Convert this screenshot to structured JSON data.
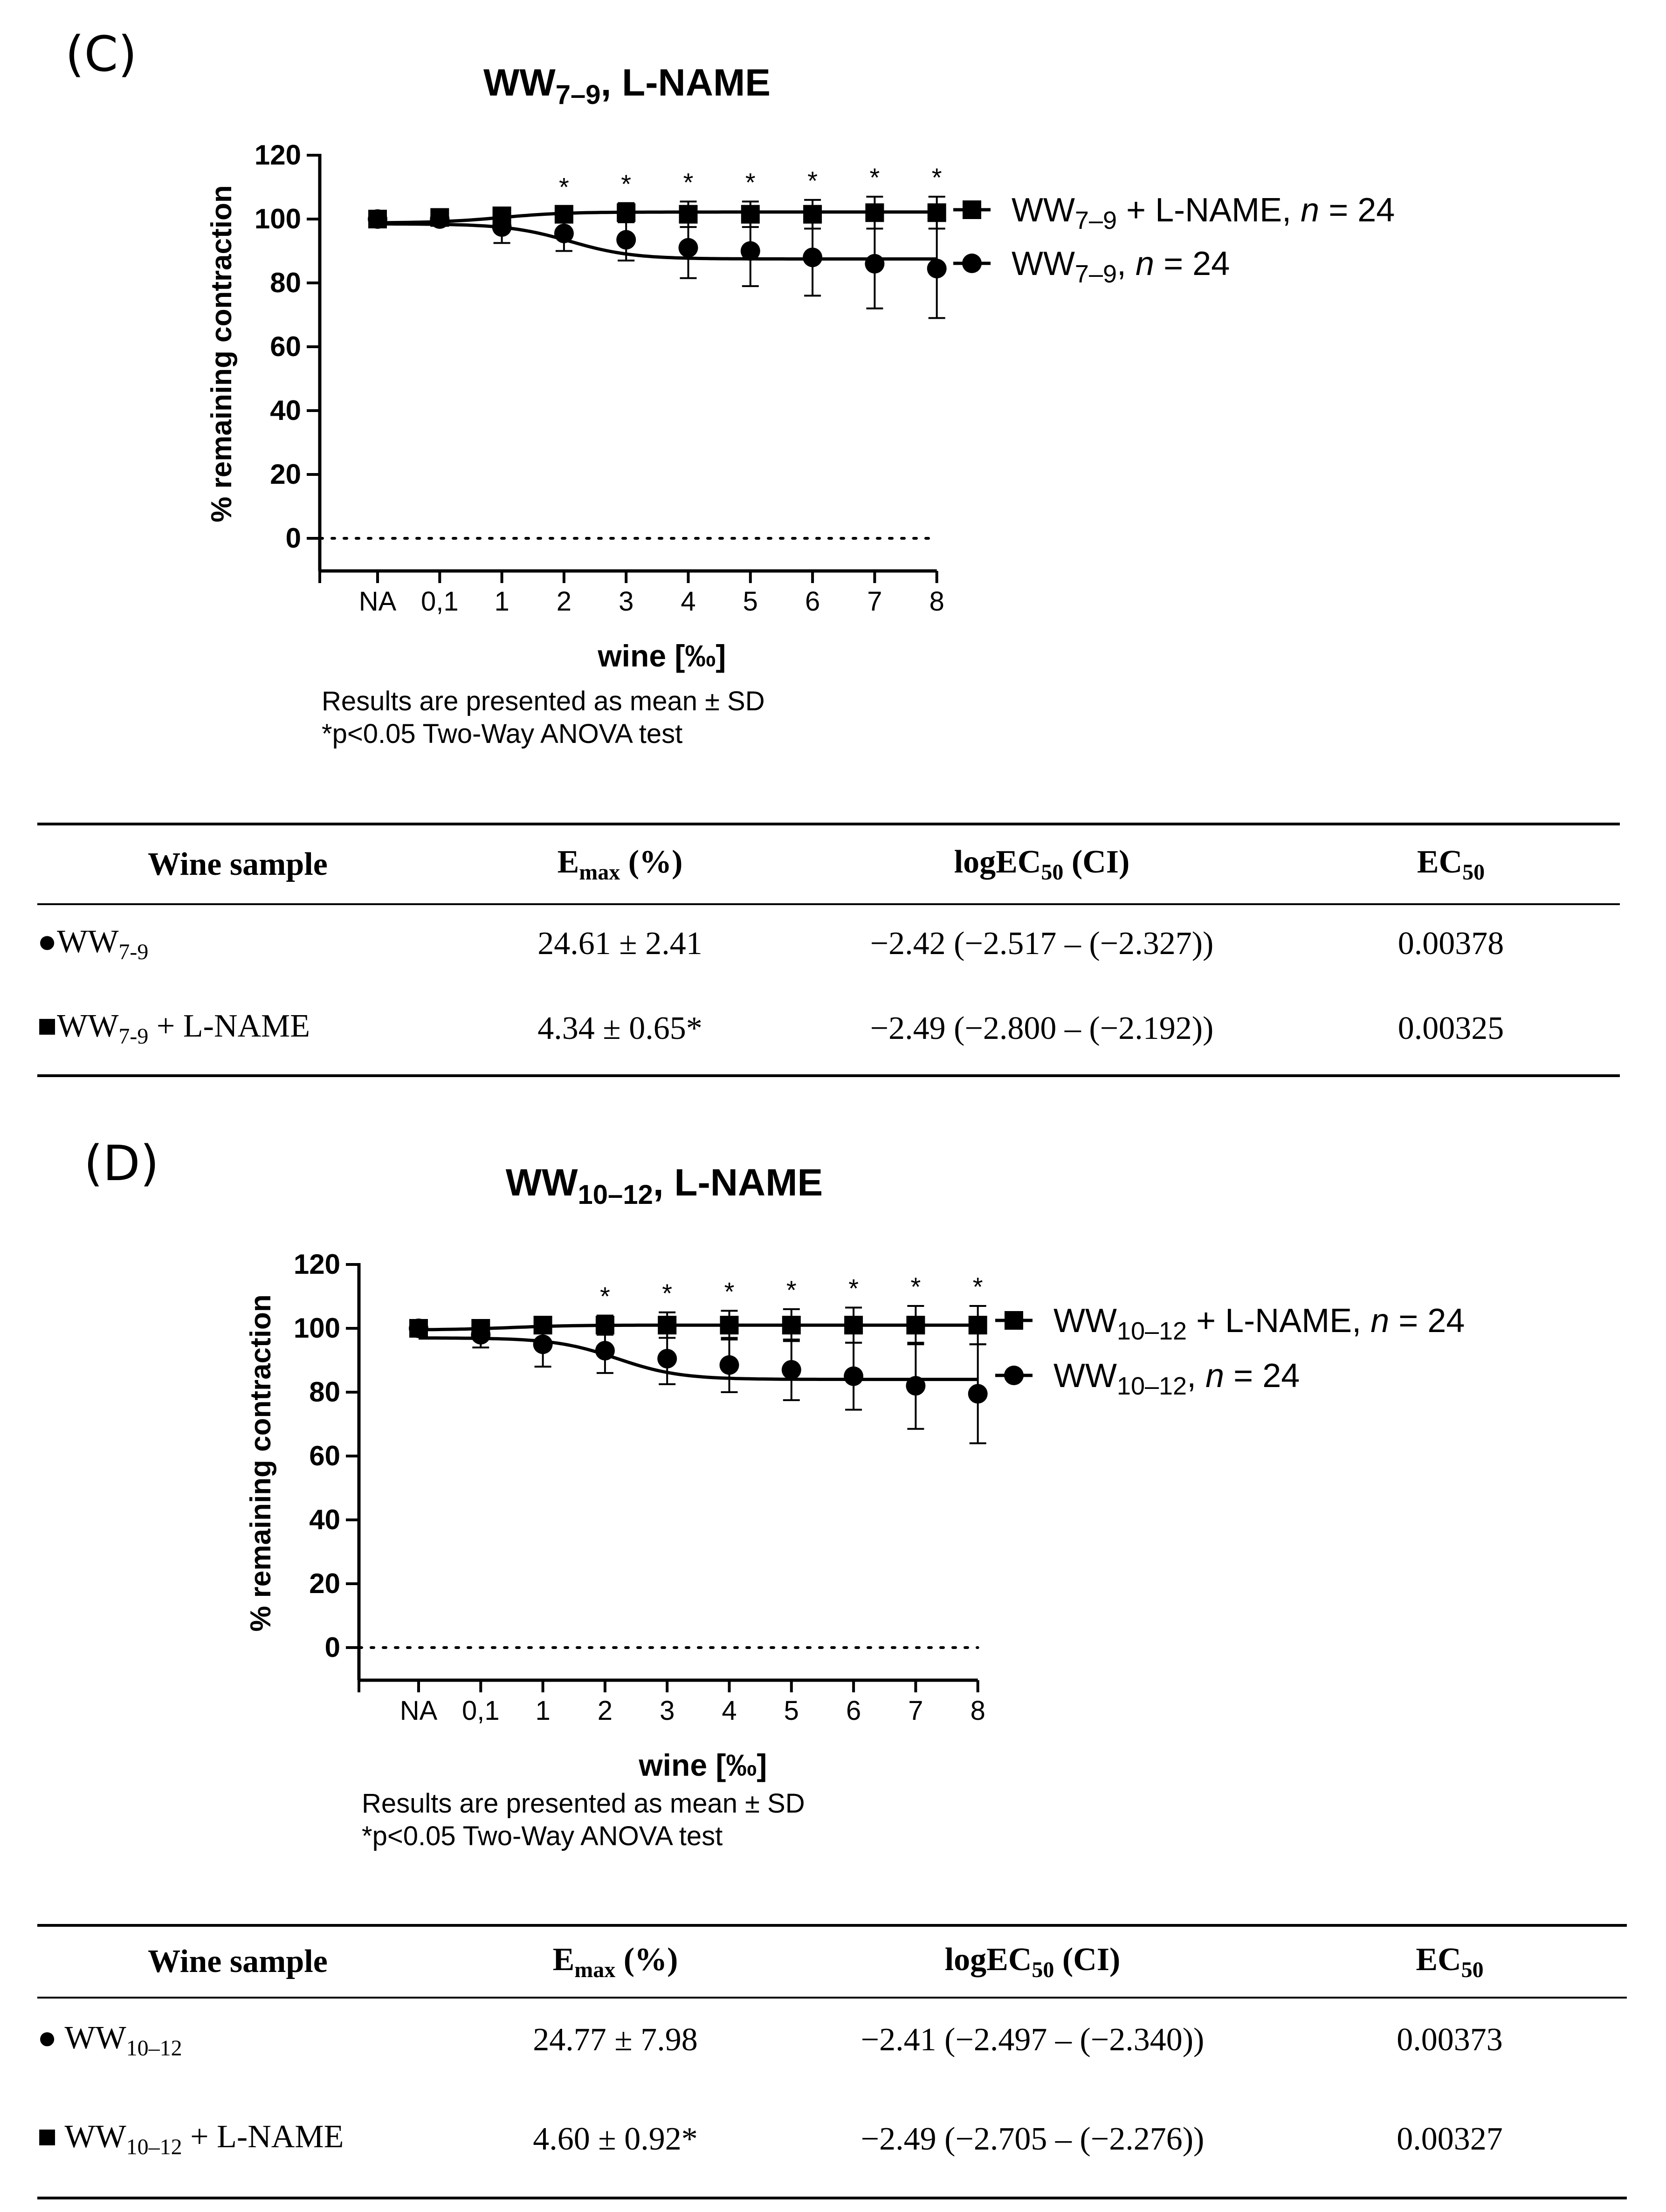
{
  "panels": [
    {
      "label": "(C)",
      "note_line1": "Results are presented as mean ± SD",
      "note_line2": "*p<0.05 Two-Way ANOVA test",
      "table": {
        "headers": [
          "Wine sample",
          "Emax (%)",
          "logEC50 (CI)",
          "EC50"
        ],
        "rows": [
          {
            "marker": "●",
            "sample": "WW7-9",
            "emax": "24.61 ± 2.41",
            "logec50": "−2.42 (−2.517 – (−2.327))",
            "ec50": "0.00378"
          },
          {
            "marker": "■",
            "sample": "WW7-9 + L-NAME",
            "emax": "4.34 ± 0.65*",
            "logec50": "−2.49 (−2.800 – (−2.192))",
            "ec50": "0.00325"
          }
        ]
      }
    },
    {
      "label": "(D)",
      "note_line1": "Results are presented as mean ± SD",
      "note_line2": "*p<0.05 Two-Way ANOVA test",
      "table": {
        "headers": [
          "Wine sample",
          "Emax (%)",
          "logEC50 (CI)",
          "EC50"
        ],
        "rows": [
          {
            "marker": "●",
            "sample": "WW10–12",
            "emax": "24.77 ± 7.98",
            "logec50": "−2.41 (−2.497 – (−2.340))",
            "ec50": "0.00373"
          },
          {
            "marker": "■",
            "sample": "WW10–12 + L-NAME",
            "emax": "4.60 ± 0.92*",
            "logec50": "−2.49 (−2.705 – (−2.276))",
            "ec50": "0.00327"
          }
        ]
      }
    }
  ],
  "chart_data": [
    {
      "type": "line",
      "title": "WW7–9, L-NAME",
      "xlabel": "wine [‰]",
      "ylabel": "% remaining contraction",
      "ylim": [
        -10,
        120
      ],
      "yticks": [
        0,
        20,
        40,
        60,
        80,
        100,
        120
      ],
      "categories": [
        "NA",
        "0,1",
        "1",
        "2",
        "3",
        "4",
        "5",
        "6",
        "7",
        "8"
      ],
      "significance_marker": "*",
      "significant_at": [
        "2",
        "3",
        "4",
        "5",
        "6",
        "7",
        "8"
      ],
      "reference_line": 0,
      "series": [
        {
          "name": "WW7–9 + L-NAME, n = 24",
          "marker": "square",
          "values": [
            100,
            100.5,
            101,
            101.5,
            102,
            101.5,
            101.5,
            101.5,
            102,
            102
          ],
          "sd": [
            0,
            0.5,
            2,
            2.5,
            3,
            4,
            4,
            4.5,
            5,
            5
          ],
          "fit": {
            "top": 98.8,
            "bottom": 102.2,
            "x50": 2.0,
            "k": 2.0
          }
        },
        {
          "name": "WW7–9, n = 24",
          "marker": "circle",
          "values": [
            100,
            100,
            97.5,
            95.5,
            93.5,
            91,
            90,
            88,
            86,
            84.5
          ],
          "sd": [
            0,
            1,
            5,
            5.5,
            6.5,
            9.5,
            11,
            12,
            14,
            15.5
          ],
          "fit": {
            "top": 98.5,
            "bottom": 87.5,
            "x50": 3.1,
            "k": 2.0
          }
        }
      ]
    },
    {
      "type": "line",
      "title": "WW10–12, L-NAME",
      "xlabel": "wine [‰]",
      "ylabel": "% remaining contraction",
      "ylim": [
        -10,
        120
      ],
      "yticks": [
        0,
        20,
        40,
        60,
        80,
        100,
        120
      ],
      "categories": [
        "NA",
        "0,1",
        "1",
        "2",
        "3",
        "4",
        "5",
        "6",
        "7",
        "8"
      ],
      "significance_marker": "*",
      "significant_at": [
        "2",
        "3",
        "4",
        "5",
        "6",
        "7",
        "8"
      ],
      "reference_line": 0,
      "series": [
        {
          "name": "WW10–12 + L-NAME, n = 24",
          "marker": "square",
          "values": [
            100,
            100,
            101,
            101,
            101,
            101,
            101,
            101,
            101,
            101
          ],
          "sd": [
            0,
            0.5,
            1.5,
            3,
            4,
            4.5,
            5,
            5.5,
            6,
            6
          ],
          "fit": {
            "top": 99.5,
            "bottom": 101,
            "x50": 1.5,
            "k": 2.0
          }
        },
        {
          "name": "WW10–12, n = 24",
          "marker": "circle",
          "values": [
            100,
            98,
            95,
            93,
            90.5,
            88.5,
            87,
            85,
            82,
            79.5
          ],
          "sd": [
            0,
            4,
            7,
            7,
            8,
            8.5,
            9.5,
            10.5,
            13.5,
            15.5
          ],
          "fit": {
            "top": 97,
            "bottom": 84,
            "x50": 3.2,
            "k": 2.0
          }
        }
      ]
    }
  ]
}
